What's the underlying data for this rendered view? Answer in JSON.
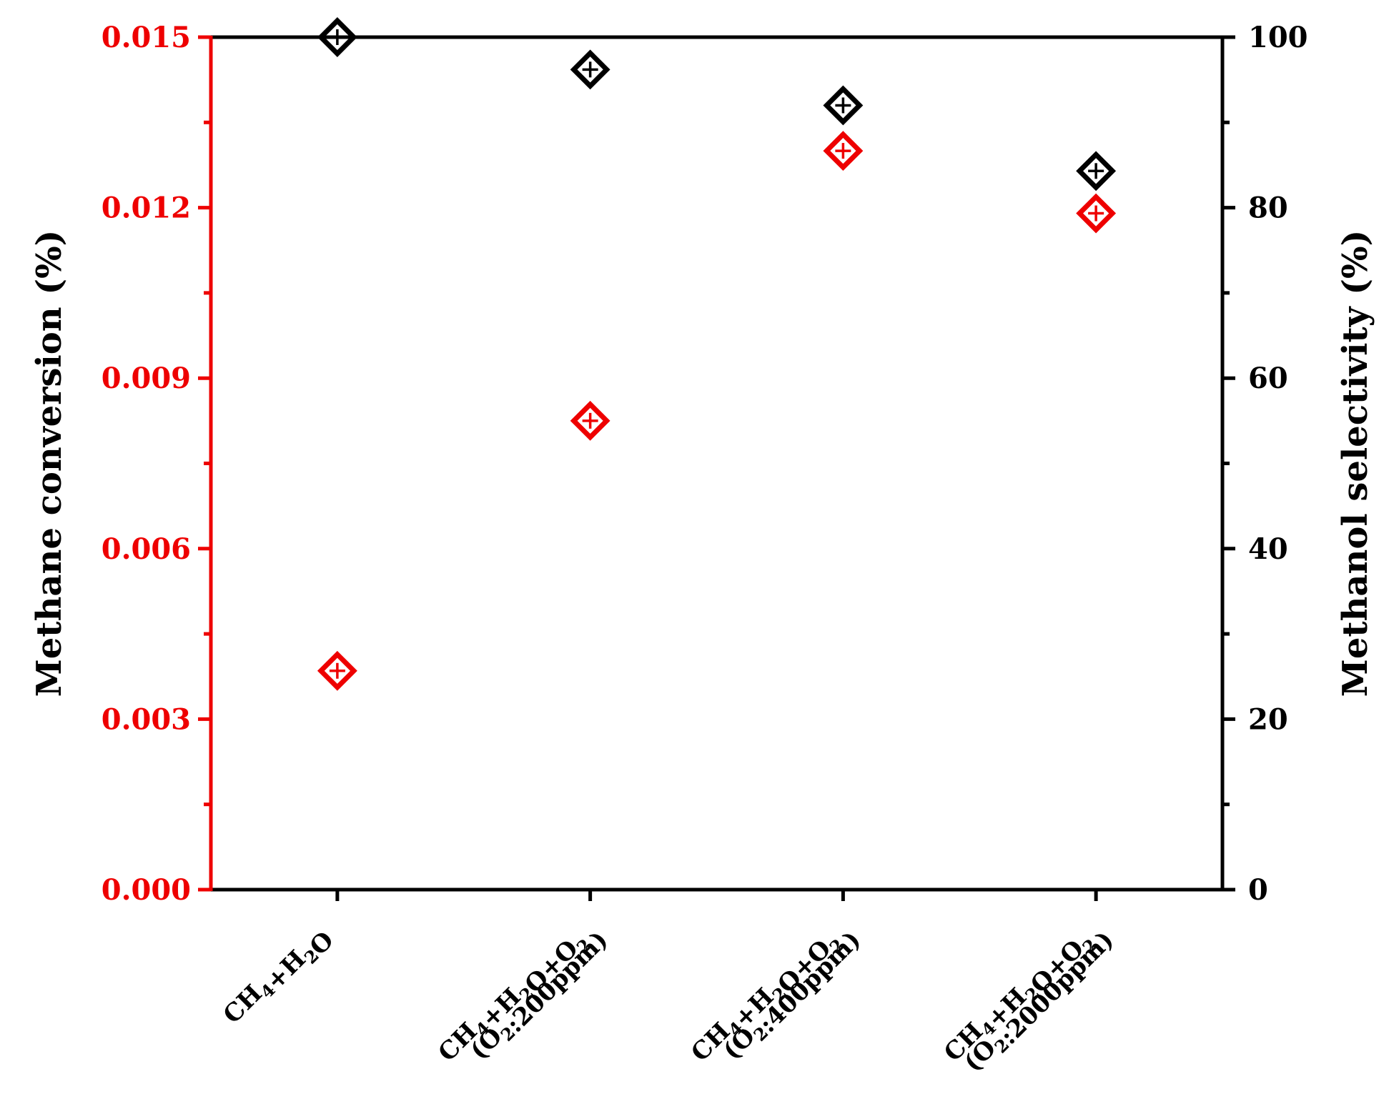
{
  "chart_data": {
    "type": "scatter",
    "categories": [
      {
        "line1": [
          "CH",
          {
            "sub": "4"
          },
          "+H",
          {
            "sub": "2"
          },
          "O"
        ],
        "line2": []
      },
      {
        "line1": [
          "CH",
          {
            "sub": "4"
          },
          "+H",
          {
            "sub": "2"
          },
          "O+O",
          {
            "sub": "2"
          }
        ],
        "line2": [
          "(O",
          {
            "sub": "2"
          },
          ":200ppm)"
        ]
      },
      {
        "line1": [
          "CH",
          {
            "sub": "4"
          },
          "+H",
          {
            "sub": "2"
          },
          "O+O",
          {
            "sub": "2"
          }
        ],
        "line2": [
          "(O",
          {
            "sub": "2"
          },
          ":400ppm)"
        ]
      },
      {
        "line1": [
          "CH",
          {
            "sub": "4"
          },
          "+H",
          {
            "sub": "2"
          },
          "O+O",
          {
            "sub": "2"
          }
        ],
        "line2": [
          "(O",
          {
            "sub": "2"
          },
          ":2000ppm)"
        ]
      }
    ],
    "y_left": {
      "label": "Methane conversion (%)",
      "lim": [
        0,
        0.015
      ],
      "ticks": [
        "0.000",
        "0.003",
        "0.006",
        "0.009",
        "0.012",
        "0.015"
      ],
      "color": "#ee0000"
    },
    "y_right": {
      "label": "Methanol selectivity (%)",
      "lim": [
        0,
        100
      ],
      "ticks": [
        "0",
        "20",
        "40",
        "60",
        "80",
        "100"
      ],
      "color": "#000000"
    },
    "series": [
      {
        "axis": "left",
        "color": "#ee0000",
        "marker": "diamond-cross",
        "values": [
          0.00385,
          0.00825,
          0.013,
          0.0119
        ]
      },
      {
        "axis": "right",
        "color": "#000000",
        "marker": "diamond-cross",
        "values": [
          100,
          96.2,
          92.0,
          84.3
        ]
      }
    ],
    "grid": false,
    "legend": "none"
  }
}
